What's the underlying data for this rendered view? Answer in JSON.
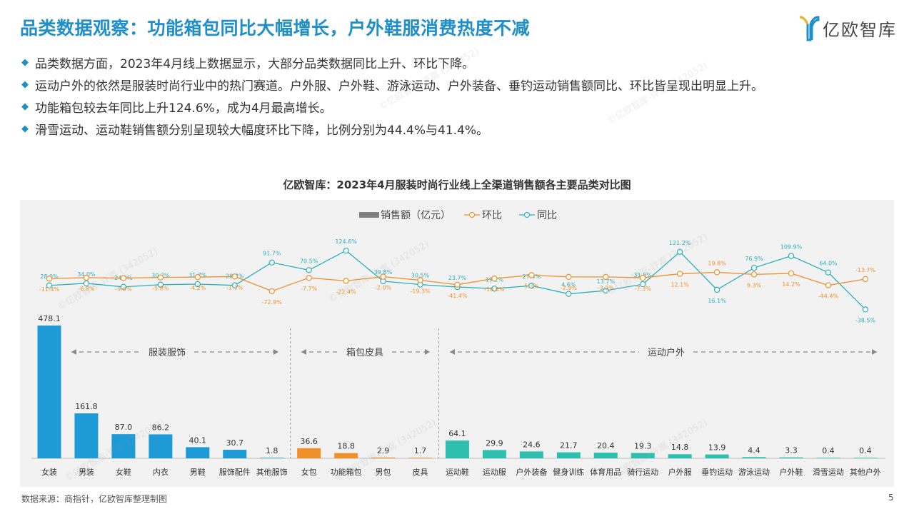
{
  "page": {
    "title": "品类数据观察：功能箱包同比大幅增长，户外鞋服消费热度不减",
    "logo_text": "亿欧智库",
    "bullets": [
      "品类数据方面，2023年4月线上数据显示，大部分品类数据同比上升、环比下降。",
      "运动户外的依然是服装时尚行业中的热门赛道。户外服、户外鞋、游泳运动、户外装备、垂钓运动销售额同比、环比皆呈现出明显上升。",
      "功能箱包较去年同比上升124.6%，成为4月最高增长。",
      "滑雪运动、运动鞋销售额分别呈现较大幅度环比下降，比例分别为44.4%与41.4%。"
    ],
    "source": "数据来源：商指针，亿欧智库整理制图",
    "page_number": "5",
    "watermark": "©亿欧智库-许嵩 (342052)"
  },
  "colors": {
    "title_blue": "#1f8fc9",
    "apparel_bar": "#1e9ad6",
    "bags_bar": "#f0902a",
    "outdoor_bar": "#2ebfae",
    "mom_line": "#f0902a",
    "yoy_line": "#2ab0bd",
    "legend_bar": "#7f7f7f"
  },
  "chart_data": {
    "type": "bar",
    "title": "亿欧智库：2023年4月服装时尚行业线上全渠道销售额各主要品类对比图",
    "legend": [
      "销售额（亿元）",
      "环比",
      "同比"
    ],
    "legend_placement": "top-center",
    "categories": [
      "女装",
      "男装",
      "女鞋",
      "内衣",
      "男鞋",
      "服饰配件",
      "其他服饰",
      "女包",
      "功能箱包",
      "男包",
      "皮具",
      "运动鞋",
      "运动服",
      "户外装备",
      "健身训练",
      "体育用品",
      "骑行运动",
      "户外服",
      "垂钓运动",
      "游泳运动",
      "户外鞋",
      "滑雪运动",
      "其他户外"
    ],
    "groups": [
      {
        "name": "服装服饰",
        "start": 0,
        "end": 6
      },
      {
        "name": "箱包皮具",
        "start": 7,
        "end": 10
      },
      {
        "name": "运动户外",
        "start": 11,
        "end": 22
      }
    ],
    "series": [
      {
        "name": "销售额（亿元）",
        "type": "bar",
        "values": [
          478.1,
          161.8,
          87.0,
          86.2,
          40.1,
          30.7,
          1.8,
          36.6,
          18.8,
          2.9,
          1.7,
          64.1,
          29.9,
          24.6,
          21.7,
          20.4,
          19.3,
          14.8,
          13.9,
          4.4,
          3.3,
          0.4,
          0.4
        ],
        "labels": [
          "478.1",
          "161.8",
          "87.0",
          "86.2",
          "40.1",
          "30.7",
          "1.8",
          "36.6",
          "18.8",
          "2.9",
          "1.7",
          "64.1",
          "29.9",
          "24.6",
          "21.7",
          "20.4",
          "19.3",
          "14.8",
          "13.9",
          "4.4",
          "3.3",
          "0.4",
          "0.4"
        ]
      },
      {
        "name": "环比",
        "type": "line",
        "values": [
          -11.4,
          -6.8,
          -9.0,
          -5.8,
          -4.2,
          -1.1,
          -72.9,
          -7.7,
          -22.4,
          -2.0,
          -19.3,
          -41.4,
          -10.8,
          5.3,
          -2.9,
          -3.2,
          -7.3,
          12.1,
          19.8,
          9.3,
          14.2,
          -44.4,
          -13.7
        ],
        "labels": [
          "-11.4%",
          "-6.8%",
          "-9.0%",
          "-5.8%",
          "-4.2%",
          "-1.1%",
          "-72.9%",
          "-7.7%",
          "-22.4%",
          "-2.0%",
          "-19.3%",
          "-41.4%",
          "-10.8%",
          "5.3%",
          "-2.9%",
          "-3.2%",
          "-7.3%",
          "12.1%",
          "19.8%",
          "9.3%",
          "14.2%",
          "-44.4%",
          "-13.7%"
        ]
      },
      {
        "name": "同比",
        "type": "line",
        "values": [
          28.0,
          34.0,
          24.0,
          30.2,
          31.7,
          28.3,
          91.7,
          70.5,
          124.6,
          39.8,
          30.5,
          23.7,
          19.2,
          27.4,
          4.6,
          13.7,
          31.5,
          121.2,
          16.1,
          76.9,
          109.9,
          64.0,
          -38.5
        ],
        "labels": [
          "28.0%",
          "34.0%",
          "24.0%",
          "30.2%",
          "31.7%",
          "28.3%",
          "91.7%",
          "70.5%",
          "124.6%",
          "39.8%",
          "30.5%",
          "23.7%",
          "19.2%",
          "27.4%",
          "4.6%",
          "13.7%",
          "31.5%",
          "121.2%",
          "16.1%",
          "76.9%",
          "109.9%",
          "64.0%",
          "-38.5%"
        ]
      }
    ]
  }
}
